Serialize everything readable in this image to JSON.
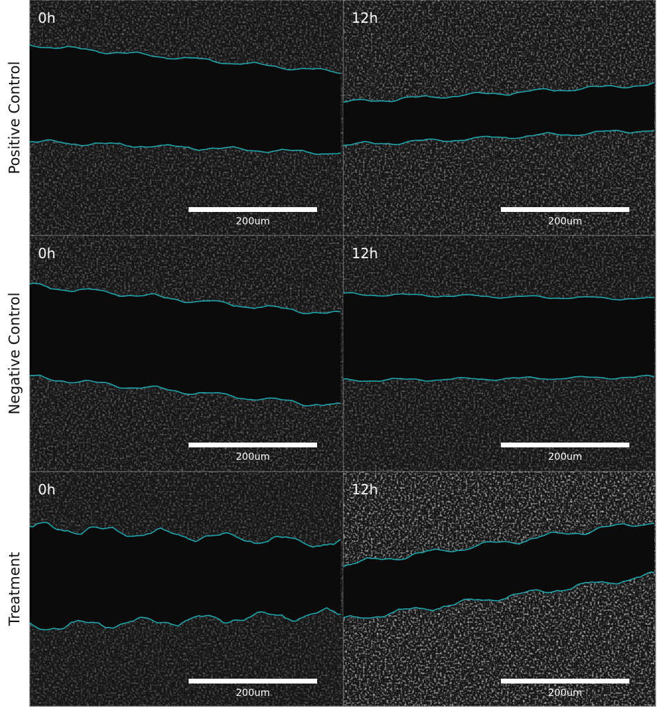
{
  "rows": [
    {
      "label": "Positive Control",
      "panels": [
        {
          "time": "0h",
          "scale": "200um"
        },
        {
          "time": "12h",
          "scale": "200um"
        }
      ]
    },
    {
      "label": "Negative Control",
      "panels": [
        {
          "time": "0h",
          "scale": "200um"
        },
        {
          "time": "12h",
          "scale": "200um"
        }
      ]
    },
    {
      "label": "Treatment",
      "panels": [
        {
          "time": "0h",
          "scale": "200um"
        },
        {
          "time": "12h",
          "scale": "200um"
        }
      ]
    }
  ]
}
